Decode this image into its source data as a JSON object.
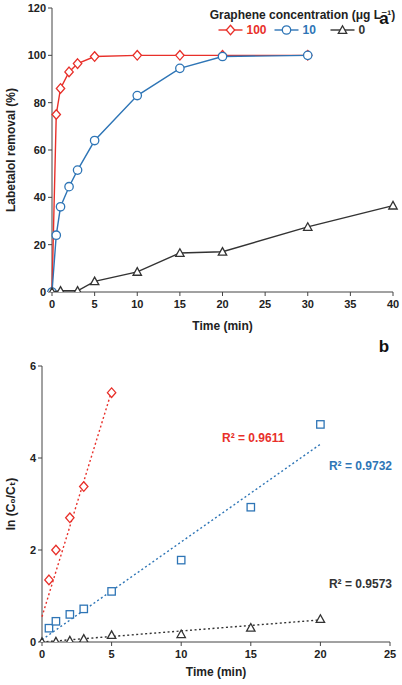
{
  "chart_data": [
    {
      "type": "line",
      "title": "a",
      "xlabel": "Time (min)",
      "ylabel": "Labetalol removal (%)",
      "xlim": [
        0,
        40
      ],
      "xticks": [
        0,
        5,
        10,
        15,
        20,
        25,
        30,
        35,
        40
      ],
      "ylim": [
        0,
        120
      ],
      "yticks": [
        0,
        20,
        40,
        60,
        80,
        100,
        120
      ],
      "grid": false,
      "legend": "top",
      "legend_title": "Graphene concentration (μg L⁻¹)",
      "series": [
        {
          "name": "100",
          "color": "#e8302a",
          "marker": "diamond",
          "line_style": "solid",
          "x": [
            0,
            0.5,
            1,
            2,
            3,
            5,
            10,
            15,
            20,
            30
          ],
          "values": [
            0,
            75,
            86,
            93,
            96.5,
            99.5,
            100,
            100,
            100,
            100
          ]
        },
        {
          "name": "10",
          "color": "#2e75b6",
          "marker": "circle",
          "line_style": "solid",
          "x": [
            0,
            0.5,
            1,
            2,
            3,
            5,
            10,
            15,
            20,
            30
          ],
          "values": [
            0,
            24,
            36,
            44.5,
            51.5,
            64,
            83,
            94.5,
            99.5,
            100
          ]
        },
        {
          "name": "0",
          "color": "#333333",
          "marker": "triangle",
          "line_style": "solid",
          "x": [
            0,
            1,
            3,
            5,
            10,
            15,
            20,
            30,
            40
          ],
          "values": [
            0,
            0.5,
            0.5,
            4.5,
            8.5,
            16.5,
            17,
            27.5,
            36.5
          ]
        }
      ]
    },
    {
      "type": "scatter",
      "title": "b",
      "xlabel": "Time (min)",
      "ylabel": "ln (C₀/Cₜ)",
      "xlim": [
        0,
        25
      ],
      "xticks": [
        0,
        5,
        10,
        15,
        20,
        25
      ],
      "ylim": [
        0,
        6
      ],
      "yticks": [
        0,
        2,
        4,
        6
      ],
      "grid": false,
      "series": [
        {
          "color": "#e8302a",
          "marker": "diamond",
          "line_style": "dotted",
          "annotation": "R² = 0.9611",
          "x": [
            0.5,
            1,
            2,
            3,
            5
          ],
          "values": [
            1.35,
            2.0,
            2.7,
            3.38,
            5.42
          ],
          "fit": {
            "x": [
              0,
              5
            ],
            "values": [
              0.55,
              5.45
            ]
          }
        },
        {
          "color": "#2e75b6",
          "marker": "square",
          "line_style": "dotted",
          "annotation": "R² = 0.9732",
          "x": [
            0.5,
            1,
            2,
            3,
            5,
            10,
            15,
            20
          ],
          "values": [
            0.3,
            0.45,
            0.6,
            0.72,
            1.1,
            1.78,
            2.93,
            4.73
          ],
          "fit": {
            "x": [
              0,
              20
            ],
            "values": [
              0.05,
              4.3
            ]
          }
        },
        {
          "color": "#333333",
          "marker": "triangle",
          "line_style": "dotted",
          "annotation": "R² = 0.9573",
          "x": [
            0,
            1,
            2,
            3,
            5,
            10,
            15,
            20
          ],
          "values": [
            0,
            0.01,
            0.03,
            0.07,
            0.15,
            0.17,
            0.31,
            0.5
          ],
          "fit": {
            "x": [
              0,
              20
            ],
            "values": [
              0,
              0.48
            ]
          }
        }
      ]
    }
  ]
}
